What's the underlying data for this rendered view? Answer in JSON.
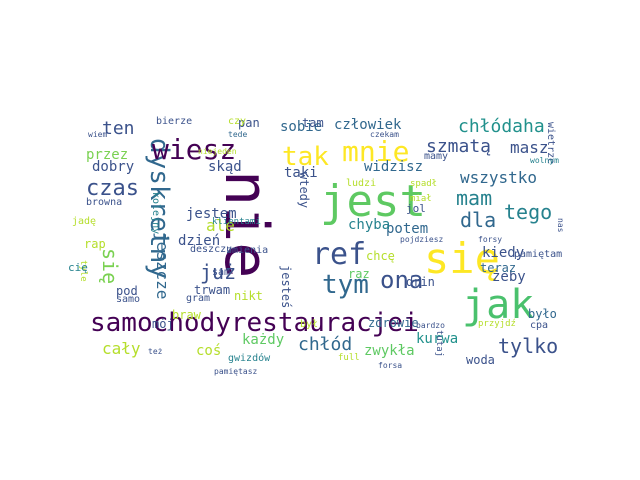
{
  "words": [
    {
      "text": "nie",
      "color": "#440154"
    },
    {
      "text": "jest",
      "color": "#5ec962"
    },
    {
      "text": "się",
      "color": "#fde725"
    },
    {
      "text": "jak",
      "color": "#4ac16d"
    },
    {
      "text": "samochodyrestauracjei",
      "color": "#440154"
    },
    {
      "text": "dyskretny",
      "color": "#31688e"
    },
    {
      "text": "mnie",
      "color": "#fde725"
    },
    {
      "text": "ref",
      "color": "#3b528b"
    },
    {
      "text": "tym",
      "color": "#31688e"
    },
    {
      "text": "ona",
      "color": "#3b528b"
    },
    {
      "text": "wiesz",
      "color": "#440154"
    },
    {
      "text": "tak",
      "color": "#fde725"
    },
    {
      "text": "mam",
      "color": "#26828e"
    },
    {
      "text": "czas",
      "color": "#3b528b"
    },
    {
      "text": "dla",
      "color": "#31688e"
    },
    {
      "text": "tego",
      "color": "#26828e"
    },
    {
      "text": "tylko",
      "color": "#3b528b"
    },
    {
      "text": "szmatą",
      "color": "#3b528b"
    },
    {
      "text": "chłódaha",
      "color": "#21918c"
    },
    {
      "text": "wszystko",
      "color": "#31688e"
    },
    {
      "text": "masz",
      "color": "#3b528b"
    },
    {
      "text": "chłód",
      "color": "#31688e"
    },
    {
      "text": "już",
      "color": "#3b528b"
    },
    {
      "text": "się",
      "color": "#7ad151"
    },
    {
      "text": "ale",
      "color": "#b5de2b"
    },
    {
      "text": "ten",
      "color": "#3b528b"
    },
    {
      "text": "przez",
      "color": "#7ad151"
    },
    {
      "text": "skąd",
      "color": "#3b528b"
    },
    {
      "text": "kiedy",
      "color": "#3b528b"
    },
    {
      "text": "jeszcze",
      "color": "#31688e"
    },
    {
      "text": "cały",
      "color": "#b5de2b"
    },
    {
      "text": "dobry",
      "color": "#3b528b"
    },
    {
      "text": "człowiek",
      "color": "#31688e"
    },
    {
      "text": "sobie",
      "color": "#31688e"
    },
    {
      "text": "taki",
      "color": "#3b528b"
    },
    {
      "text": "potem",
      "color": "#31688e"
    },
    {
      "text": "chyba",
      "color": "#26828e"
    },
    {
      "text": "zwykła",
      "color": "#5ec962"
    },
    {
      "text": "kurwa",
      "color": "#21918c"
    },
    {
      "text": "żeby",
      "color": "#3b528b"
    },
    {
      "text": "widzisz",
      "color": "#31688e"
    },
    {
      "text": "dzień",
      "color": "#3b528b"
    },
    {
      "text": "jestem",
      "color": "#3b528b"
    },
    {
      "text": "coś",
      "color": "#b5de2b"
    },
    {
      "text": "każdy",
      "color": "#5ec962"
    },
    {
      "text": "pan",
      "color": "#3b528b"
    },
    {
      "text": "tam",
      "color": "#3b528b"
    },
    {
      "text": "czy",
      "color": "#b5de2b"
    },
    {
      "text": "bierze",
      "color": "#3b528b"
    },
    {
      "text": "mamy",
      "color": "#3b528b"
    },
    {
      "text": "pamiętam",
      "color": "#3b528b"
    },
    {
      "text": "wietrze",
      "color": "#3b528b"
    },
    {
      "text": "wolnym",
      "color": "#26828e"
    },
    {
      "text": "czekam",
      "color": "#3b528b"
    },
    {
      "text": "tede",
      "color": "#31688e"
    },
    {
      "text": "wiem",
      "color": "#3b528b"
    },
    {
      "text": "niejeden",
      "color": "#b5de2b"
    },
    {
      "text": "ludzi",
      "color": "#b5de2b"
    },
    {
      "text": "spadł",
      "color": "#b5de2b"
    },
    {
      "text": "miał",
      "color": "#b5de2b"
    },
    {
      "text": "jol",
      "color": "#3b528b"
    },
    {
      "text": "wtedy",
      "color": "#3b528b"
    },
    {
      "text": "browna",
      "color": "#3b528b"
    },
    {
      "text": "kolejny",
      "color": "#26828e"
    },
    {
      "text": "klientami",
      "color": "#26828e"
    },
    {
      "text": "jadę",
      "color": "#b5de2b"
    },
    {
      "text": "rap",
      "color": "#b5de2b"
    },
    {
      "text": "tyle",
      "color": "#b5de2b"
    },
    {
      "text": "deszczu",
      "color": "#3b528b"
    },
    {
      "text": "zmienia",
      "color": "#3b528b"
    },
    {
      "text": "pojdziesz",
      "color": "#3b528b"
    },
    {
      "text": "forsy",
      "color": "#3b528b"
    },
    {
      "text": "teraz",
      "color": "#31688e"
    },
    {
      "text": "nas",
      "color": "#3b528b"
    },
    {
      "text": "chcę",
      "color": "#b5de2b"
    },
    {
      "text": "raz",
      "color": "#5ec962"
    },
    {
      "text": "sam",
      "color": "#3b528b"
    },
    {
      "text": "jesteś",
      "color": "#3b528b"
    },
    {
      "text": "pod",
      "color": "#3b528b"
    },
    {
      "text": "trwam",
      "color": "#3b528b"
    },
    {
      "text": "gram",
      "color": "#3b528b"
    },
    {
      "text": "nikt",
      "color": "#b5de2b"
    },
    {
      "text": "drin",
      "color": "#3b528b"
    },
    {
      "text": "było",
      "color": "#31688e"
    },
    {
      "text": "samo",
      "color": "#3b528b"
    },
    {
      "text": "cię",
      "color": "#26828e"
    },
    {
      "text": "mój",
      "color": "#3b528b"
    },
    {
      "text": "braw",
      "color": "#b5de2b"
    },
    {
      "text": "był",
      "color": "#b5de2b"
    },
    {
      "text": "zdrowie",
      "color": "#31688e"
    },
    {
      "text": "bardzo",
      "color": "#3b528b"
    },
    {
      "text": "przyjdź",
      "color": "#b5de2b"
    },
    {
      "text": "cpa",
      "color": "#3b528b"
    },
    {
      "text": "tutaj",
      "color": "#3b528b"
    },
    {
      "text": "też",
      "color": "#3b528b"
    },
    {
      "text": "gwizdów",
      "color": "#26828e"
    },
    {
      "text": "full",
      "color": "#b5de2b"
    },
    {
      "text": "pamiętasz",
      "color": "#3b528b"
    },
    {
      "text": "forsa",
      "color": "#3b528b"
    },
    {
      "text": "woda",
      "color": "#3b528b"
    }
  ]
}
